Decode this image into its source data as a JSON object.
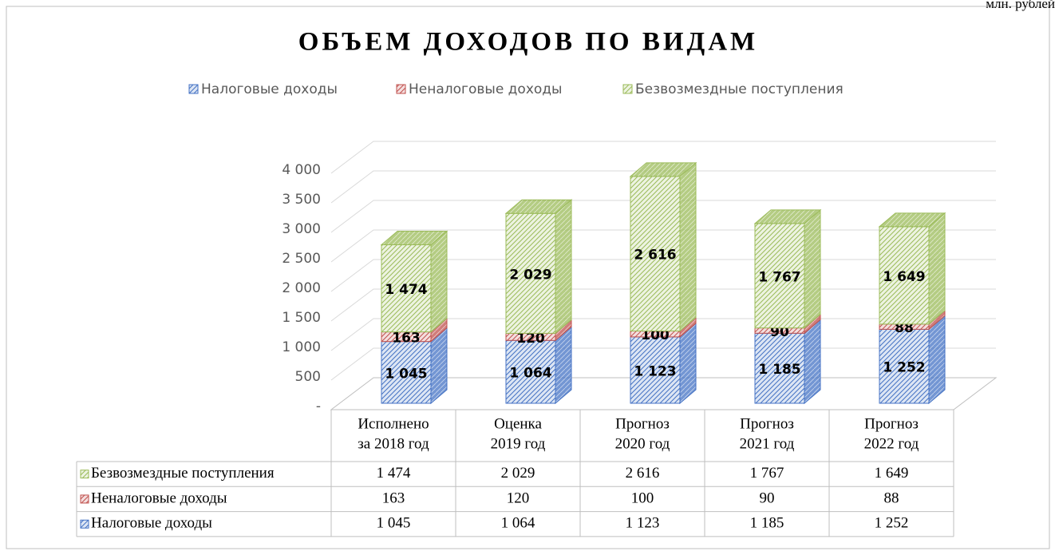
{
  "chart_data": {
    "type": "bar3d_stacked",
    "title": "ОБЪЕМ ДОХОДОВ ПО ВИДАМ",
    "unit": "млн. рублей",
    "categories": [
      [
        "Исполнено",
        "за 2018 год"
      ],
      [
        "Оценка",
        "2019 год"
      ],
      [
        "Прогноз",
        "2020 год"
      ],
      [
        "Прогноз",
        "2021 год"
      ],
      [
        "Прогноз",
        "2022 год"
      ]
    ],
    "series": [
      {
        "name": "Налоговые доходы",
        "color": "#4472c4",
        "values": [
          1045,
          1064,
          1123,
          1185,
          1252
        ],
        "value_labels": [
          "1 045",
          "1 064",
          "1 123",
          "1 185",
          "1 252"
        ]
      },
      {
        "name": "Неналоговые доходы",
        "color": "#c0504d",
        "values": [
          163,
          120,
          100,
          90,
          88
        ],
        "value_labels": [
          "163",
          "120",
          "100",
          "90",
          "88"
        ]
      },
      {
        "name": "Безвозмездные поступления",
        "color": "#9bbb59",
        "values": [
          1474,
          2029,
          2616,
          1767,
          1649
        ],
        "value_labels": [
          "1 474",
          "2 029",
          "2 616",
          "1 767",
          "1 649"
        ]
      }
    ],
    "ylim": [
      0,
      4000
    ],
    "yticks": [
      {
        "value": 0,
        "label": "-"
      },
      500,
      {
        "value": 1000,
        "label": "1 000"
      },
      {
        "value": 1500,
        "label": "1 500"
      },
      {
        "value": 2000,
        "label": "2 000"
      },
      {
        "value": 2500,
        "label": "2 500"
      },
      {
        "value": 3000,
        "label": "3 000"
      },
      {
        "value": 3500,
        "label": "3 500"
      },
      {
        "value": 4000,
        "label": "4 000"
      }
    ],
    "grid": true
  }
}
